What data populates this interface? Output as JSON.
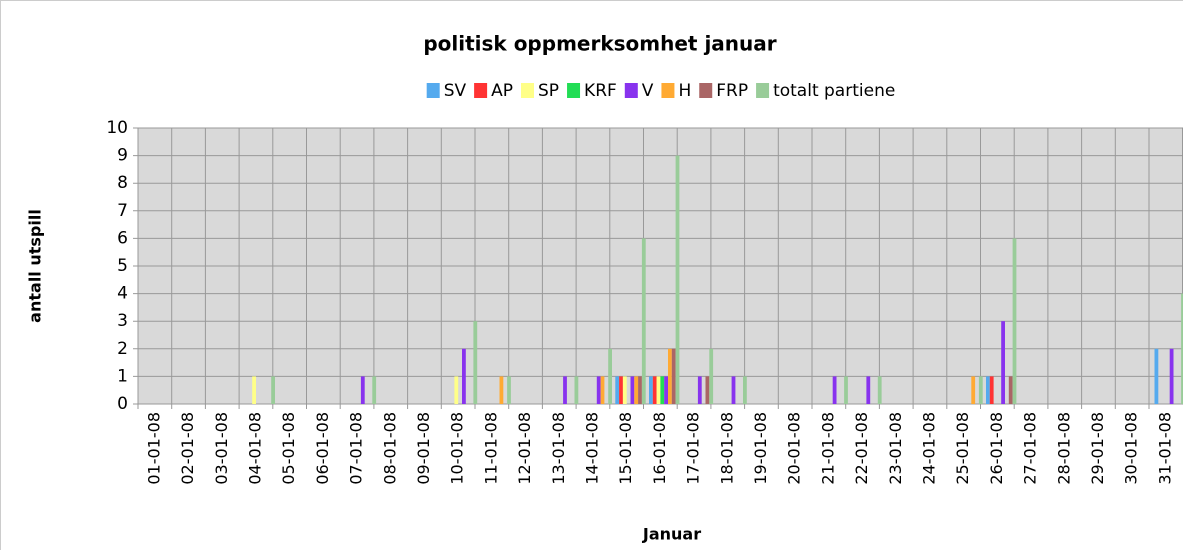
{
  "chart_data": {
    "type": "bar",
    "title": "politisk oppmerksomhet januar",
    "x_label": "Januar",
    "y_label": "antall utspill",
    "categories": [
      "01-01-08",
      "02-01-08",
      "03-01-08",
      "04-01-08",
      "05-01-08",
      "06-01-08",
      "07-01-08",
      "08-01-08",
      "09-01-08",
      "10-01-08",
      "11-01-08",
      "12-01-08",
      "13-01-08",
      "14-01-08",
      "15-01-08",
      "16-01-08",
      "17-01-08",
      "18-01-08",
      "19-01-08",
      "20-01-08",
      "21-01-08",
      "22-01-08",
      "23-01-08",
      "24-01-08",
      "25-01-08",
      "26-01-08",
      "27-01-08",
      "28-01-08",
      "29-01-08",
      "30-01-08",
      "31-01-08"
    ],
    "series": [
      {
        "name": "SV",
        "color": "#55aaee",
        "values": [
          0,
          0,
          0,
          0,
          0,
          0,
          0,
          0,
          0,
          0,
          0,
          0,
          0,
          0,
          1,
          1,
          0,
          0,
          0,
          0,
          0,
          0,
          0,
          0,
          0,
          1,
          0,
          0,
          0,
          0,
          2
        ]
      },
      {
        "name": "AP",
        "color": "#ff3333",
        "values": [
          0,
          0,
          0,
          0,
          0,
          0,
          0,
          0,
          0,
          0,
          0,
          0,
          0,
          0,
          1,
          1,
          0,
          0,
          0,
          0,
          0,
          0,
          0,
          0,
          0,
          1,
          0,
          0,
          0,
          0,
          0
        ]
      },
      {
        "name": "SP",
        "color": "#ffff88",
        "values": [
          0,
          0,
          0,
          1,
          0,
          0,
          0,
          0,
          0,
          1,
          0,
          0,
          0,
          0,
          1,
          1,
          0,
          0,
          0,
          0,
          0,
          0,
          0,
          0,
          0,
          0,
          0,
          0,
          0,
          0,
          0
        ]
      },
      {
        "name": "KRF",
        "color": "#22dd55",
        "values": [
          0,
          0,
          0,
          0,
          0,
          0,
          0,
          0,
          0,
          0,
          0,
          0,
          0,
          0,
          0,
          1,
          0,
          0,
          0,
          0,
          0,
          0,
          0,
          0,
          0,
          0,
          0,
          0,
          0,
          0,
          0
        ]
      },
      {
        "name": "V",
        "color": "#8833ee",
        "values": [
          0,
          0,
          0,
          0,
          0,
          0,
          1,
          0,
          0,
          2,
          0,
          0,
          1,
          1,
          1,
          1,
          1,
          1,
          0,
          0,
          1,
          1,
          0,
          0,
          0,
          3,
          0,
          0,
          0,
          0,
          2
        ]
      },
      {
        "name": "H",
        "color": "#ffaa33",
        "values": [
          0,
          0,
          0,
          0,
          0,
          0,
          0,
          0,
          0,
          0,
          1,
          0,
          0,
          1,
          1,
          2,
          0,
          0,
          0,
          0,
          0,
          0,
          0,
          0,
          1,
          0,
          0,
          0,
          0,
          0,
          0
        ]
      },
      {
        "name": "FRP",
        "color": "#aa6666",
        "values": [
          0,
          0,
          0,
          0,
          0,
          0,
          0,
          0,
          0,
          0,
          0,
          0,
          0,
          0,
          1,
          2,
          1,
          0,
          0,
          0,
          0,
          0,
          0,
          0,
          0,
          1,
          0,
          0,
          0,
          0,
          0
        ]
      },
      {
        "name": "totalt partiene",
        "color": "#99cc99",
        "values": [
          0,
          0,
          0,
          1,
          0,
          0,
          1,
          0,
          0,
          3,
          1,
          0,
          1,
          2,
          6,
          9,
          2,
          1,
          0,
          0,
          1,
          1,
          0,
          0,
          1,
          6,
          0,
          0,
          0,
          0,
          4
        ]
      }
    ],
    "ylim": [
      0,
      10
    ],
    "yticks": [
      0,
      1,
      2,
      3,
      4,
      5,
      6,
      7,
      8,
      9,
      10
    ],
    "grid": true,
    "legend": "top"
  }
}
